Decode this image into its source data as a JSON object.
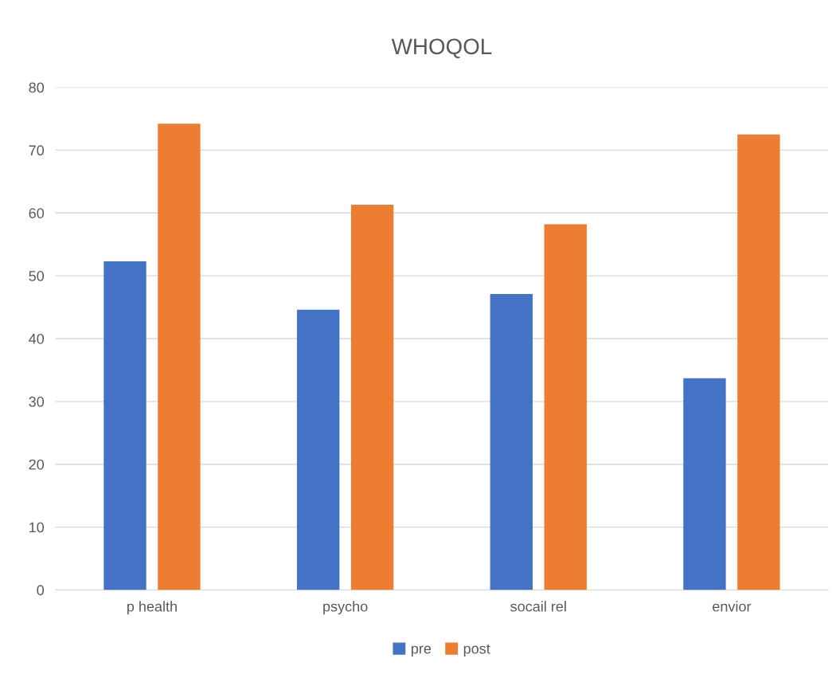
{
  "chart_data": {
    "type": "bar",
    "title": "WHOQOL",
    "categories": [
      "p health",
      "psycho",
      "socail rel",
      "envior"
    ],
    "series": [
      {
        "name": "pre",
        "color": "#4472c4",
        "values": [
          52.3,
          44.6,
          47.1,
          33.7
        ]
      },
      {
        "name": "post",
        "color": "#ed7d31",
        "values": [
          74.2,
          61.3,
          58.2,
          72.5
        ]
      }
    ],
    "ylim": [
      0,
      80
    ],
    "yticks": [
      0,
      10,
      20,
      30,
      40,
      50,
      60,
      70,
      80
    ],
    "grid": "y",
    "legend": "bottom"
  }
}
